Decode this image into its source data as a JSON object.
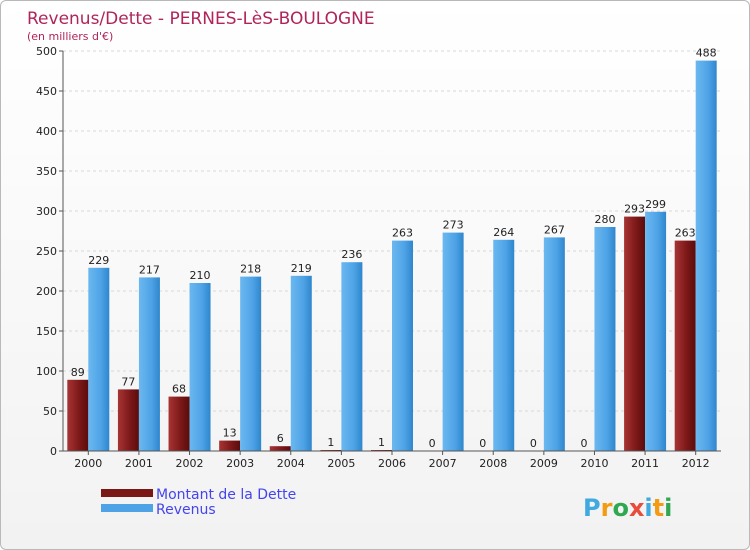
{
  "chart_data": {
    "type": "bar",
    "title": "Revenus/Dette - PERNES-LèS-BOULOGNE",
    "subtitle": "(en milliers d'€)",
    "xlabel": "",
    "ylabel": "",
    "ylim": [
      0,
      500
    ],
    "yticks": [
      0,
      50,
      100,
      150,
      200,
      250,
      300,
      350,
      400,
      450,
      500
    ],
    "grid": true,
    "categories": [
      "2000",
      "2001",
      "2002",
      "2003",
      "2004",
      "2005",
      "2006",
      "2007",
      "2008",
      "2009",
      "2010",
      "2011",
      "2012"
    ],
    "series": [
      {
        "name": "Montant de la Dette",
        "color": "#7a1717",
        "values": [
          89,
          77,
          68,
          13,
          6,
          1,
          1,
          0,
          0,
          0,
          0,
          293,
          263
        ]
      },
      {
        "name": "Revenus",
        "color": "#4ea3e6",
        "values": [
          229,
          217,
          210,
          218,
          219,
          236,
          263,
          273,
          264,
          267,
          280,
          299,
          488
        ]
      }
    ],
    "legend_position": "bottom-left"
  },
  "logo": {
    "letters": [
      "P",
      "r",
      "o",
      "x",
      "i",
      "t",
      "i"
    ],
    "colors": [
      "#3fa9e0",
      "#f39c12",
      "#2fa84f",
      "#e74c3c",
      "#3fa9e0",
      "#f39c12",
      "#2fa84f"
    ]
  }
}
